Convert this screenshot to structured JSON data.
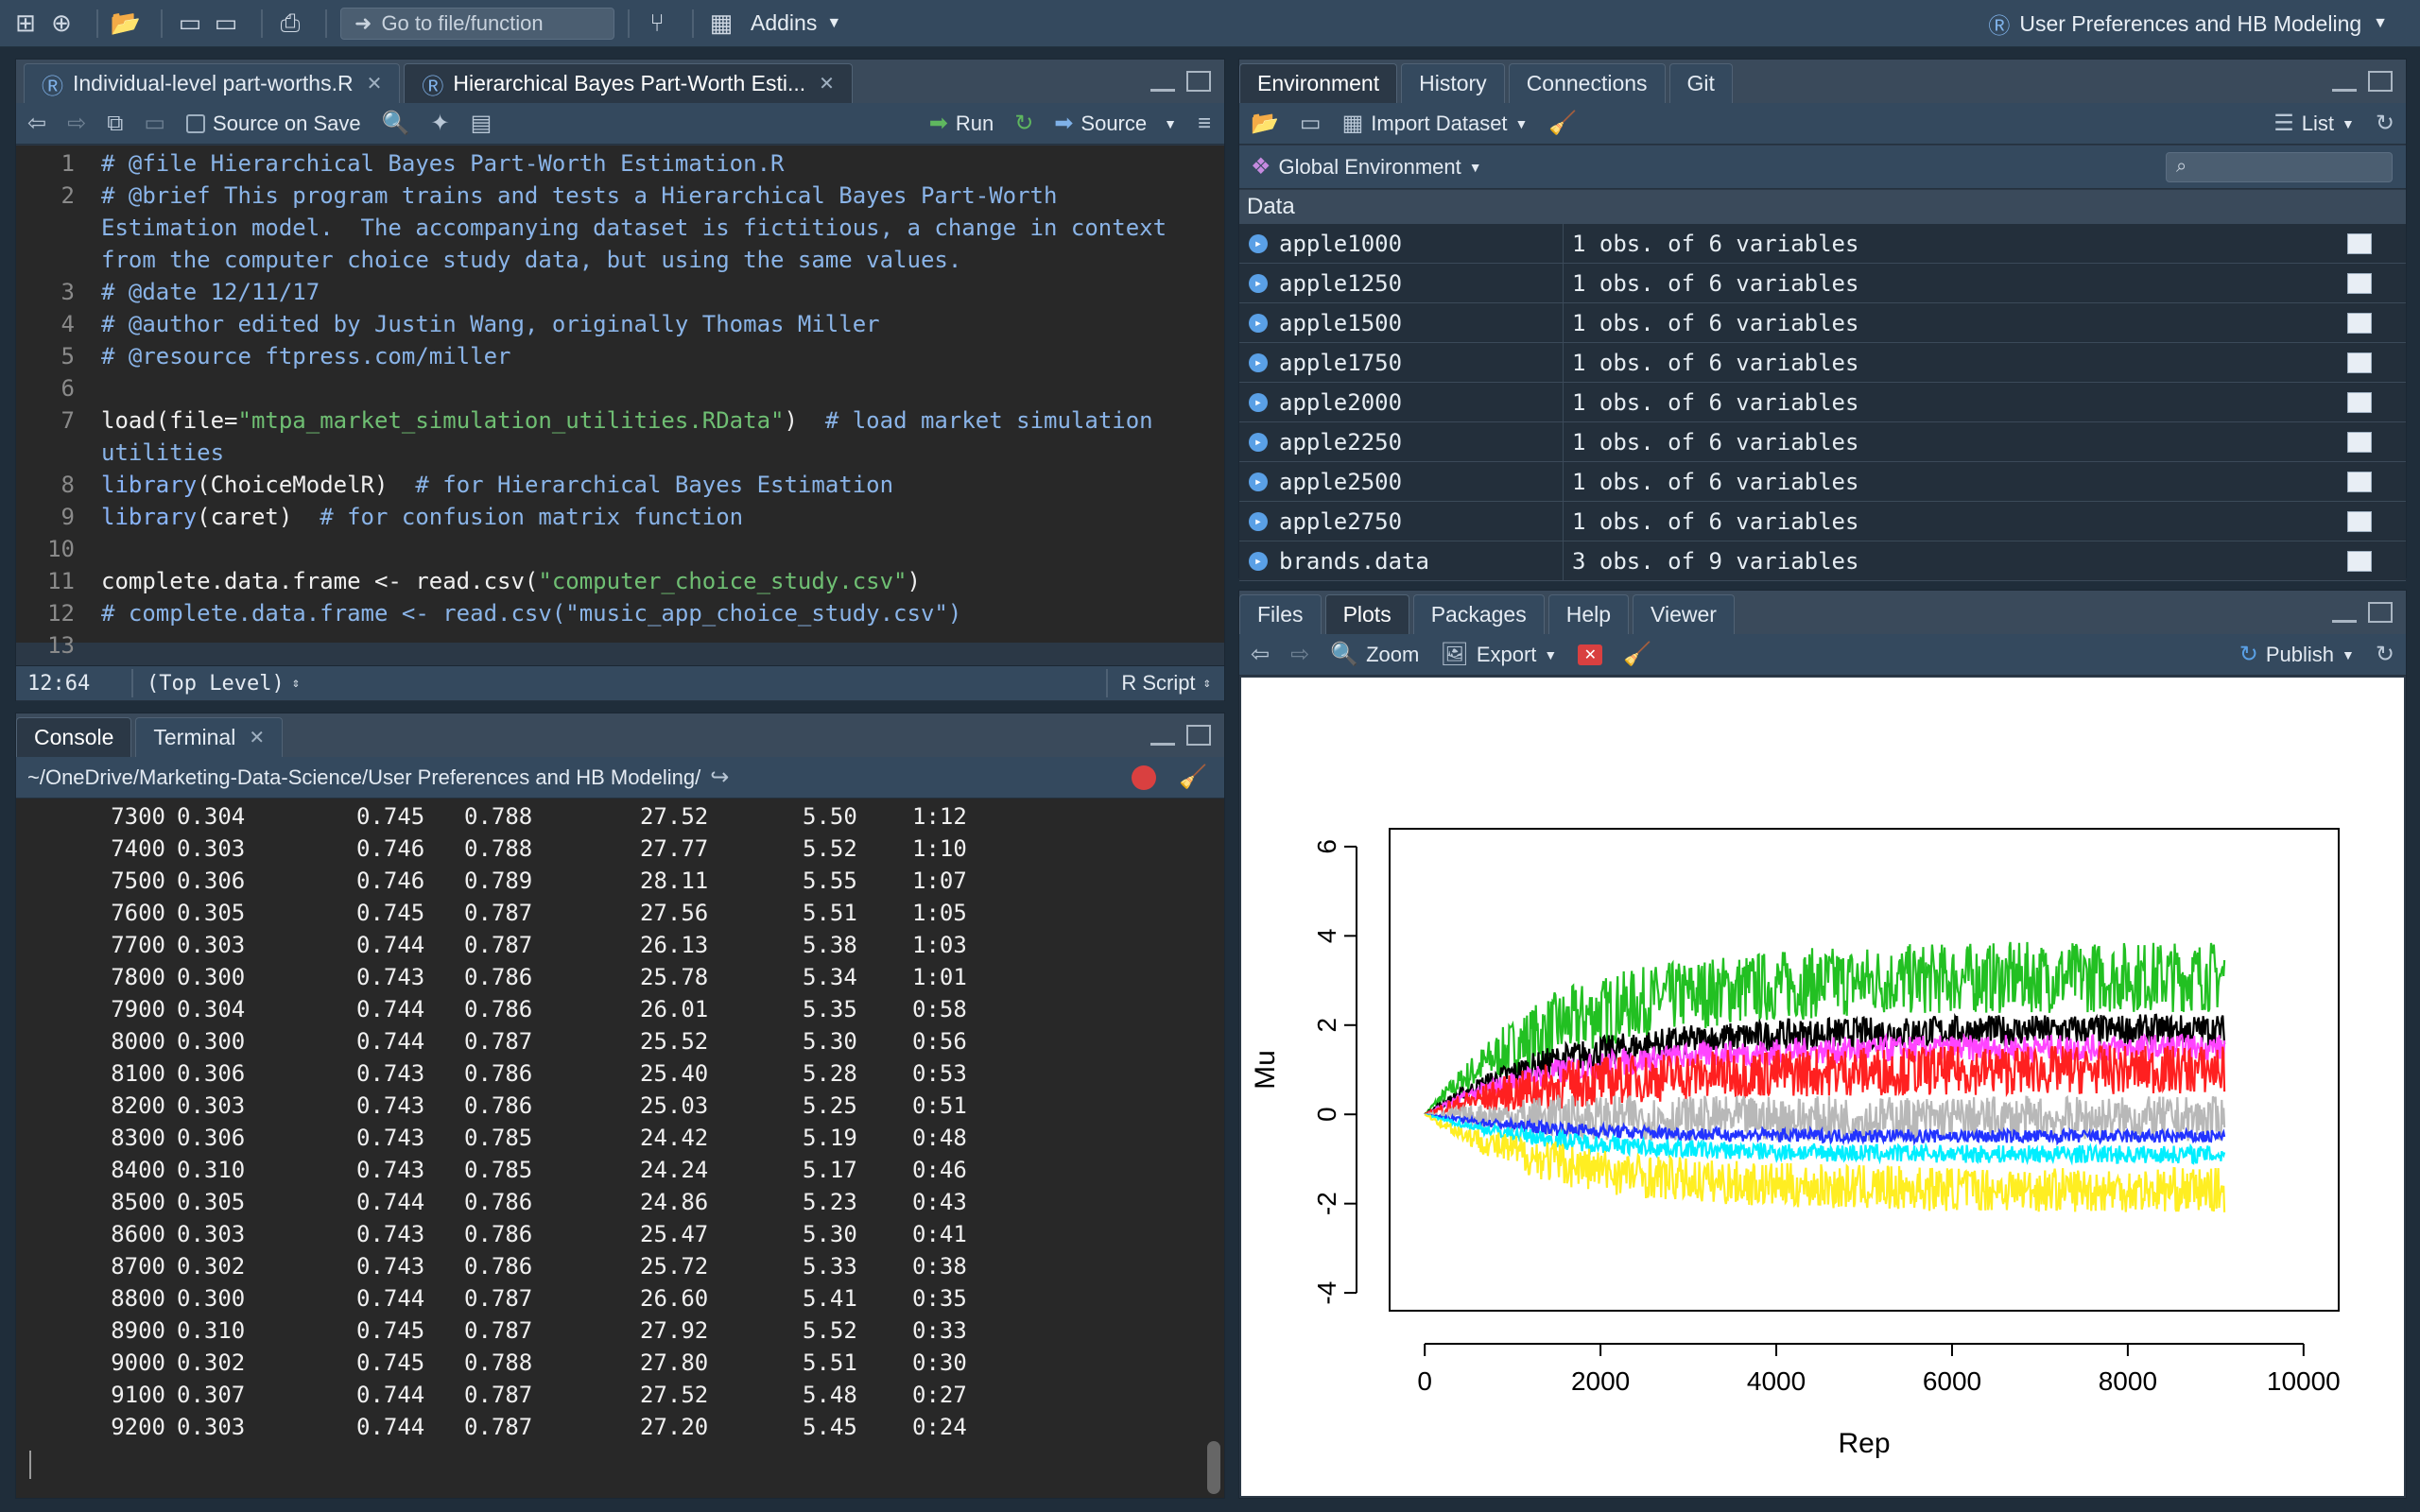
{
  "project_name": "User Preferences and HB Modeling",
  "toolbar": {
    "goto_placeholder": "Go to file/function",
    "addins": "Addins"
  },
  "source": {
    "tabs": [
      {
        "label": "Individual-level part-worths.R"
      },
      {
        "label": "Hierarchical Bayes Part-Worth Esti..."
      }
    ],
    "toolbar": {
      "source_on_save": "Source on Save",
      "run": "Run",
      "source": "Source"
    },
    "lines": [
      {
        "n": "1",
        "text": "# @file Hierarchical Bayes Part-Worth Estimation.R",
        "cls": "cm"
      },
      {
        "n": "2",
        "text": "# @brief This program trains and tests a Hierarchical Bayes Part-Worth",
        "cls": "cm"
      },
      {
        "n": "",
        "text": "Estimation model.  The accompanying dataset is fictitious, a change in context",
        "cls": "cm"
      },
      {
        "n": "",
        "text": "from the computer choice study data, but using the same values.",
        "cls": "cm"
      },
      {
        "n": "3",
        "text": "# @date 12/11/17",
        "cls": "cm"
      },
      {
        "n": "4",
        "text": "# @author edited by Justin Wang, originally Thomas Miller",
        "cls": "cm"
      },
      {
        "n": "5",
        "text": "# @resource ftpress.com/miller",
        "cls": "cm"
      },
      {
        "n": "6",
        "text": "",
        "cls": ""
      },
      {
        "n": "7",
        "text": "load(file=\"mtpa_market_simulation_utilities.RData\")  # load market simulation",
        "cls": "mix7"
      },
      {
        "n": "",
        "text": "utilities",
        "cls": "cm"
      },
      {
        "n": "8",
        "text": "library(ChoiceModelR)  # for Hierarchical Bayes Estimation",
        "cls": "mix8"
      },
      {
        "n": "9",
        "text": "library(caret)  # for confusion matrix function",
        "cls": "mix9"
      },
      {
        "n": "10",
        "text": "",
        "cls": ""
      },
      {
        "n": "11",
        "text": "complete.data.frame <- read.csv(\"computer_choice_study.csv\")",
        "cls": "mix11"
      },
      {
        "n": "12",
        "text": "# complete.data.frame <- read.csv(\"music_app_choice_study.csv\")",
        "cls": "cm"
      },
      {
        "n": "13",
        "text": "",
        "cls": ""
      }
    ],
    "status": {
      "pos": "12:64",
      "scope": "(Top Level)",
      "type": "R Script"
    }
  },
  "console": {
    "tabs": [
      {
        "label": "Console"
      },
      {
        "label": "Terminal"
      }
    ],
    "path": "~/OneDrive/Marketing-Data-Science/User Preferences and HB Modeling/",
    "rows": [
      [
        "7300",
        "0.304",
        "0.745",
        "0.788",
        "27.52",
        "5.50",
        "1:12"
      ],
      [
        "7400",
        "0.303",
        "0.746",
        "0.788",
        "27.77",
        "5.52",
        "1:10"
      ],
      [
        "7500",
        "0.306",
        "0.746",
        "0.789",
        "28.11",
        "5.55",
        "1:07"
      ],
      [
        "7600",
        "0.305",
        "0.745",
        "0.787",
        "27.56",
        "5.51",
        "1:05"
      ],
      [
        "7700",
        "0.303",
        "0.744",
        "0.787",
        "26.13",
        "5.38",
        "1:03"
      ],
      [
        "7800",
        "0.300",
        "0.743",
        "0.786",
        "25.78",
        "5.34",
        "1:01"
      ],
      [
        "7900",
        "0.304",
        "0.744",
        "0.786",
        "26.01",
        "5.35",
        "0:58"
      ],
      [
        "8000",
        "0.300",
        "0.744",
        "0.787",
        "25.52",
        "5.30",
        "0:56"
      ],
      [
        "8100",
        "0.306",
        "0.743",
        "0.786",
        "25.40",
        "5.28",
        "0:53"
      ],
      [
        "8200",
        "0.303",
        "0.743",
        "0.786",
        "25.03",
        "5.25",
        "0:51"
      ],
      [
        "8300",
        "0.306",
        "0.743",
        "0.785",
        "24.42",
        "5.19",
        "0:48"
      ],
      [
        "8400",
        "0.310",
        "0.743",
        "0.785",
        "24.24",
        "5.17",
        "0:46"
      ],
      [
        "8500",
        "0.305",
        "0.744",
        "0.786",
        "24.86",
        "5.23",
        "0:43"
      ],
      [
        "8600",
        "0.303",
        "0.743",
        "0.786",
        "25.47",
        "5.30",
        "0:41"
      ],
      [
        "8700",
        "0.302",
        "0.743",
        "0.786",
        "25.72",
        "5.33",
        "0:38"
      ],
      [
        "8800",
        "0.300",
        "0.744",
        "0.787",
        "26.60",
        "5.41",
        "0:35"
      ],
      [
        "8900",
        "0.310",
        "0.745",
        "0.787",
        "27.92",
        "5.52",
        "0:33"
      ],
      [
        "9000",
        "0.302",
        "0.745",
        "0.788",
        "27.80",
        "5.51",
        "0:30"
      ],
      [
        "9100",
        "0.307",
        "0.744",
        "0.787",
        "27.52",
        "5.48",
        "0:27"
      ],
      [
        "9200",
        "0.303",
        "0.744",
        "0.787",
        "27.20",
        "5.45",
        "0:24"
      ]
    ]
  },
  "env": {
    "tabs": [
      {
        "label": "Environment"
      },
      {
        "label": "History"
      },
      {
        "label": "Connections"
      },
      {
        "label": "Git"
      }
    ],
    "import_dataset": "Import Dataset",
    "list_label": "List",
    "scope": "Global Environment",
    "section": "Data",
    "rows": [
      {
        "name": "apple1000",
        "value": "1 obs. of 6 variables"
      },
      {
        "name": "apple1250",
        "value": "1 obs. of 6 variables"
      },
      {
        "name": "apple1500",
        "value": "1 obs. of 6 variables"
      },
      {
        "name": "apple1750",
        "value": "1 obs. of 6 variables"
      },
      {
        "name": "apple2000",
        "value": "1 obs. of 6 variables"
      },
      {
        "name": "apple2250",
        "value": "1 obs. of 6 variables"
      },
      {
        "name": "apple2500",
        "value": "1 obs. of 6 variables"
      },
      {
        "name": "apple2750",
        "value": "1 obs. of 6 variables"
      },
      {
        "name": "brands.data",
        "value": "3 obs. of 9 variables"
      }
    ]
  },
  "plots": {
    "tabs": [
      {
        "label": "Files"
      },
      {
        "label": "Plots"
      },
      {
        "label": "Packages"
      },
      {
        "label": "Help"
      },
      {
        "label": "Viewer"
      }
    ],
    "zoom": "Zoom",
    "export": "Export",
    "publish": "Publish"
  },
  "chart_data": {
    "type": "line",
    "xlabel": "Rep",
    "ylabel": "Mu",
    "xlim": [
      0,
      10000
    ],
    "ylim": [
      -4,
      6
    ],
    "xticks": [
      "0",
      "2000",
      "4000",
      "6000",
      "8000",
      "10000"
    ],
    "yticks": [
      "-4",
      "-2",
      "0",
      "2",
      "4",
      "6"
    ],
    "x_end": 9100,
    "series": [
      {
        "color": "#22c022",
        "level": 3.1,
        "noise": 0.8
      },
      {
        "color": "#000000",
        "level": 1.9,
        "noise": 0.35
      },
      {
        "color": "#ff44ff",
        "level": 1.5,
        "noise": 0.3
      },
      {
        "color": "#ff2020",
        "level": 1.0,
        "noise": 0.55
      },
      {
        "color": "#b8b8b8",
        "level": -0.1,
        "noise": 0.5
      },
      {
        "color": "#2233ff",
        "level": -0.5,
        "noise": 0.15
      },
      {
        "color": "#00eeff",
        "level": -0.9,
        "noise": 0.2
      },
      {
        "color": "#ffee22",
        "level": -1.7,
        "noise": 0.5
      }
    ]
  }
}
